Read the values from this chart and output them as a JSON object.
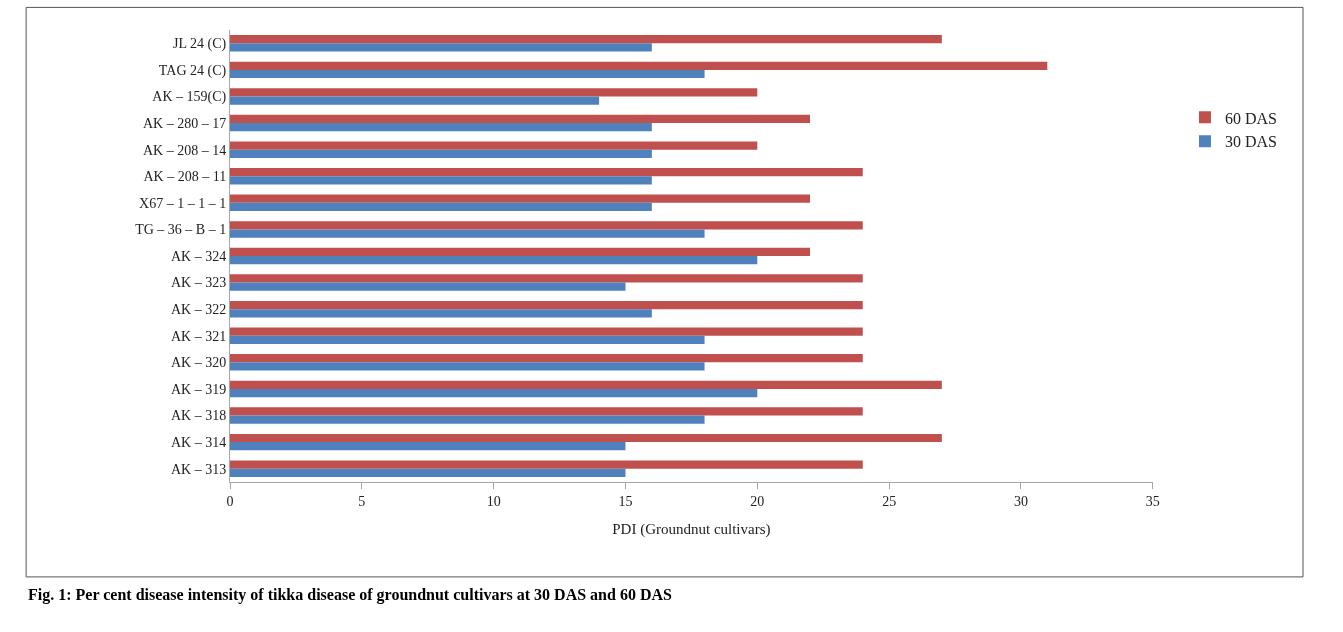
{
  "chart_data": {
    "type": "bar",
    "orientation": "horizontal",
    "xlabel": "PDI (Groundnut cultivars)",
    "annotations": [
      "Fig. 1: Per cent disease intensity of tikka disease of groundnut cultivars at 30 DAS and 60 DAS"
    ],
    "categories": [
      "JL 24 (C)",
      "TAG 24 (C)",
      "AK – 159(C)",
      "AK – 280 – 17",
      "AK – 208 – 14",
      "AK – 208 – 11",
      "X67 – 1 – 1 – 1",
      "TG – 36 – B – 1",
      "AK – 324",
      "AK – 323",
      "AK – 322",
      "AK – 321",
      "AK – 320",
      "AK – 319",
      "AK – 318",
      "AK – 314",
      "AK – 313"
    ],
    "series": [
      {
        "name": "60 DAS",
        "color": "#c0504d",
        "values": [
          27,
          31,
          20,
          22,
          20,
          24,
          22,
          24,
          22,
          24,
          24,
          24,
          24,
          27,
          24,
          27,
          24
        ]
      },
      {
        "name": "30 DAS",
        "color": "#4f81bd",
        "values": [
          16,
          18,
          14,
          16,
          16,
          16,
          16,
          18,
          20,
          15,
          16,
          18,
          18,
          20,
          18,
          15,
          15
        ]
      }
    ],
    "xlim": [
      0,
      35
    ],
    "xticks": [
      0,
      5,
      10,
      15,
      20,
      25,
      30,
      35
    ],
    "legend": "right"
  }
}
